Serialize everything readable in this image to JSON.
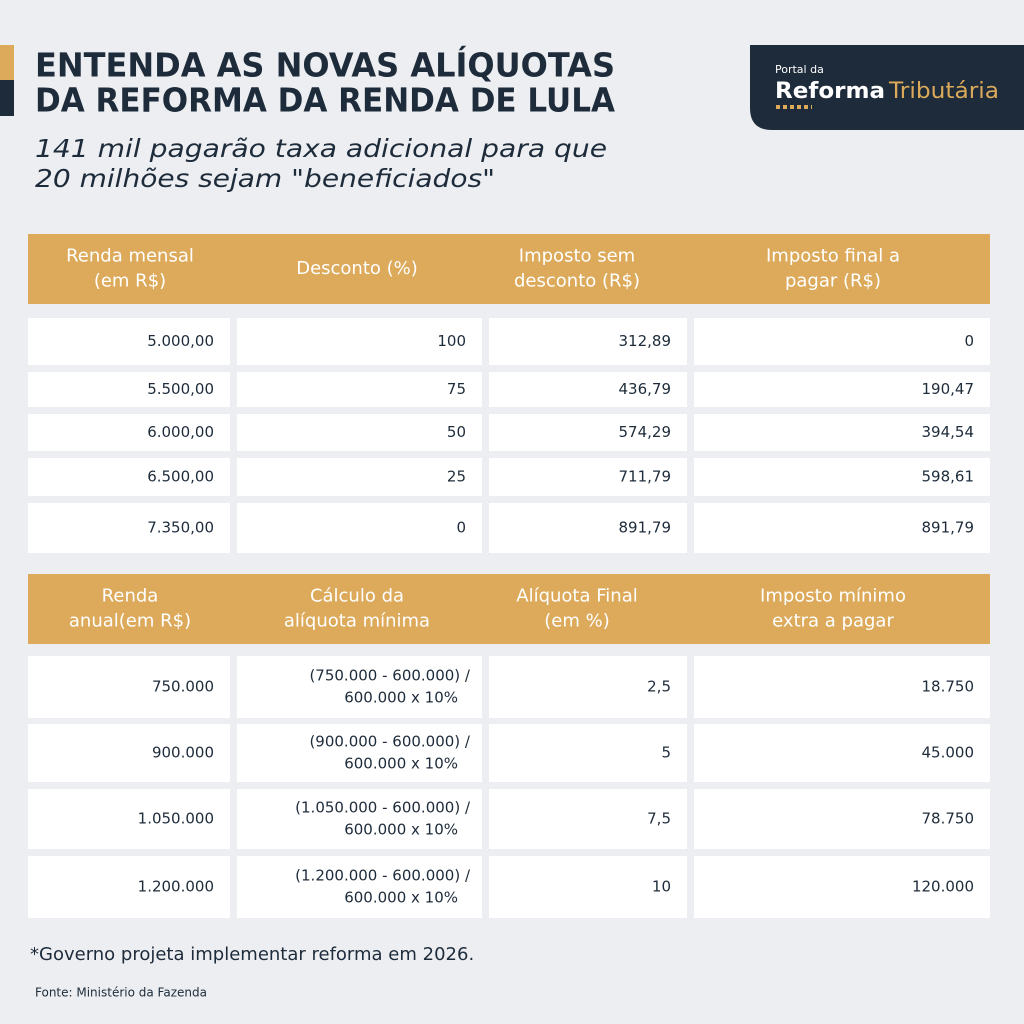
{
  "header": {
    "title_lines": [
      "ENTENDA AS NOVAS ALÍQUOTAS",
      "DA REFORMA DA RENDA DE LULA"
    ],
    "subtitle_lines": [
      "141 mil pagarão taxa adicional para que",
      "20 milhões sejam \"beneficiados\""
    ]
  },
  "logo": {
    "prefix": "Portal da",
    "word1": "Reforma",
    "word2": "Tributária"
  },
  "table1": {
    "columns": [
      [
        "Renda mensal",
        "(em R$)"
      ],
      [
        "Desconto (%)"
      ],
      [
        "Imposto sem",
        "desconto (R$)"
      ],
      [
        "Imposto final a",
        "pagar (R$)"
      ]
    ],
    "rows": [
      [
        "5.000,00",
        "100",
        "312,89",
        "0"
      ],
      [
        "5.500,00",
        "75",
        "436,79",
        "190,47"
      ],
      [
        "6.000,00",
        "50",
        "574,29",
        "394,54"
      ],
      [
        "6.500,00",
        "25",
        "711,79",
        "598,61"
      ],
      [
        "7.350,00",
        "0",
        "891,79",
        "891,79"
      ]
    ]
  },
  "table2": {
    "columns": [
      [
        "Renda",
        "anual(em R$)"
      ],
      [
        "Cálculo da",
        "alíquota mínima"
      ],
      [
        "Alíquota Final",
        "(em %)"
      ],
      [
        "Imposto mínimo",
        "extra a pagar"
      ]
    ],
    "rows": [
      [
        "750.000",
        [
          "(750.000 - 600.000) /",
          "600.000 x 10%"
        ],
        "2,5",
        "18.750"
      ],
      [
        "900.000",
        [
          "(900.000 - 600.000) /",
          "600.000 x 10%"
        ],
        "5",
        "45.000"
      ],
      [
        "1.050.000",
        [
          "(1.050.000 - 600.000) /",
          "600.000 x 10%"
        ],
        "7,5",
        "78.750"
      ],
      [
        "1.200.000",
        [
          "(1.200.000 - 600.000) /",
          "600.000 x 10%"
        ],
        "10",
        "120.000"
      ]
    ]
  },
  "footnote": "*Governo projeta implementar reforma em 2026.",
  "source": "Fonte: Ministério da Fazenda"
}
